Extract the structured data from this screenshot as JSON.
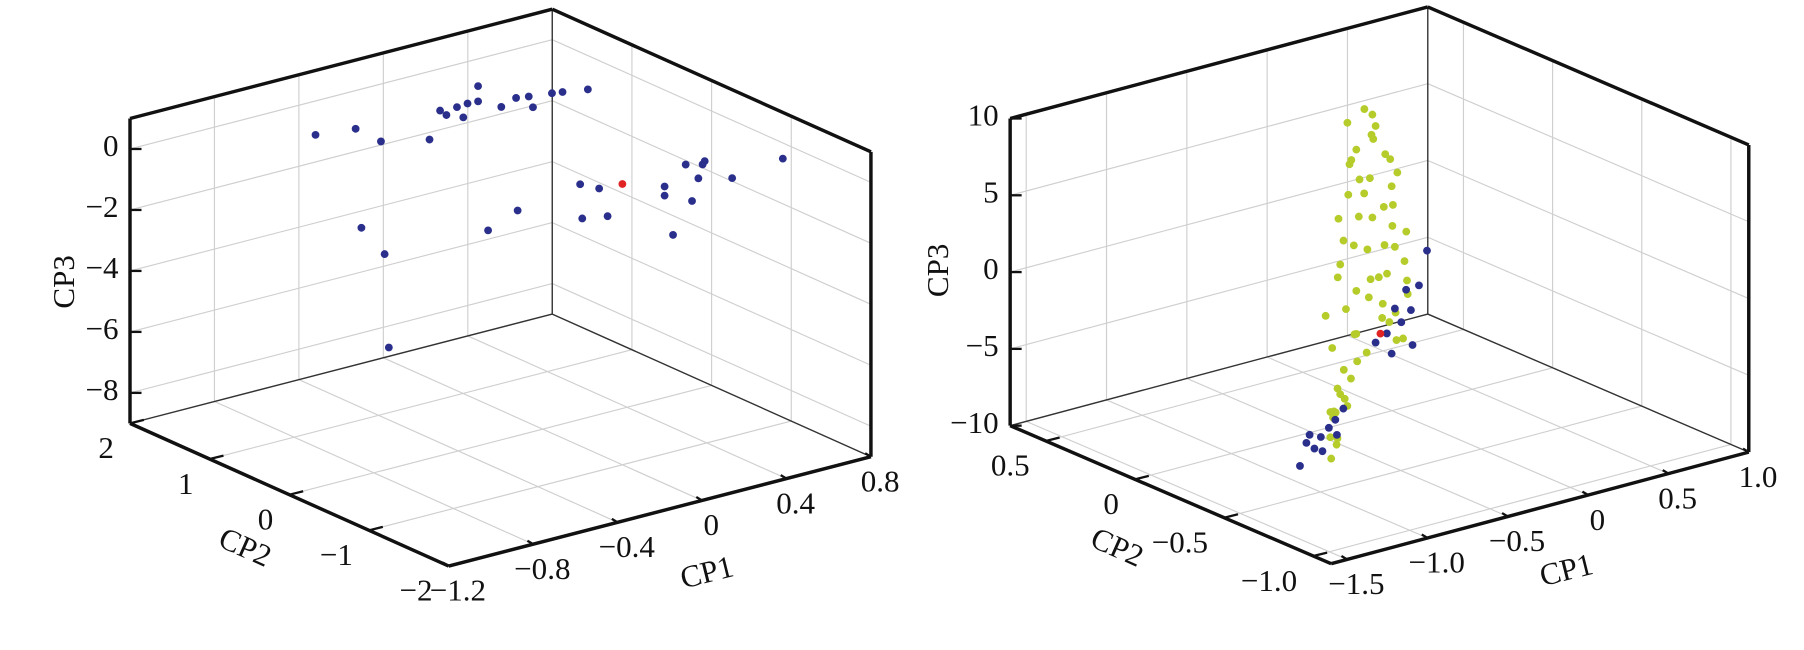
{
  "chart_data": [
    {
      "type": "scatter3d",
      "xlabel": "CP1",
      "ylabel": "CP2",
      "zlabel": "CP3",
      "xlim": [
        -1.2,
        0.8
      ],
      "ylim": [
        -2,
        2
      ],
      "zlim": [
        -9,
        1
      ],
      "xticks": [
        {
          "value": -1.2,
          "label": "−1.2"
        },
        {
          "value": -0.8,
          "label": "−0.8"
        },
        {
          "value": -0.4,
          "label": "−0.4"
        },
        0,
        0.4,
        0.8
      ],
      "yticks": [
        {
          "value": -2,
          "label": "−2"
        },
        {
          "value": -1,
          "label": "−1"
        },
        0,
        1,
        2
      ],
      "zticks": [
        {
          "value": -8,
          "label": "−8"
        },
        {
          "value": -6,
          "label": "−6"
        },
        {
          "value": -4,
          "label": "−4"
        },
        {
          "value": -2,
          "label": "−2"
        },
        0
      ],
      "grid": true,
      "series": [
        {
          "color": "#2b2f8c",
          "x": [
            -0.51,
            -0.32,
            -0.2,
            0.03,
            0.08,
            0.11,
            0.16,
            0.19,
            0.21,
            0.26,
            0.26,
            0.37,
            0.44,
            0.5,
            0.52,
            0.61,
            0.66,
            0.78,
            -0.2,
            -0.11,
            0.2,
            0.2,
            0.3,
            0.33,
            0.36,
            0.38,
            0.39,
            0.52,
            0.76,
            -0.19,
            -0.07,
            0.24,
            -0.67,
            -0.56,
            -0.54,
            -0.07,
            0.07
          ],
          "y": [
            1.5,
            1.5,
            1.5,
            1.5,
            1.5,
            1.5,
            1.5,
            1.5,
            1.5,
            1.5,
            1.5,
            1.5,
            1.5,
            1.5,
            1.5,
            1.5,
            1.5,
            1.5,
            -1,
            -1,
            -1,
            -1,
            -1,
            -1,
            -1,
            -1,
            -1,
            -1,
            -1,
            -1,
            -1,
            -1,
            0.5,
            0.5,
            0.5,
            0.5,
            0.5
          ],
          "z": [
            -0.19,
            -0.33,
            -0.96,
            -1.31,
            -0.45,
            -0.65,
            -0.48,
            -0.87,
            -0.45,
            0.03,
            -0.47,
            -0.85,
            -0.68,
            -0.74,
            -1.13,
            -0.83,
            -0.88,
            -1.01,
            0.56,
            0.26,
            -0.23,
            -0.53,
            0.31,
            -0.94,
            -0.25,
            0.17,
            0.26,
            -0.53,
            -0.32,
            -0.58,
            -0.72,
            -1.89,
            -1.78,
            -2.84,
            -5.94,
            -2.94,
            -2.54
          ]
        },
        {
          "color": "#e02424",
          "x": [
            0.0
          ],
          "y": [
            -1
          ],
          "z": [
            0.21
          ]
        }
      ]
    },
    {
      "type": "scatter3d",
      "xlabel": "CP1",
      "ylabel": "CP2",
      "zlabel": "CP3",
      "xlim": [
        -1.6,
        1.0
      ],
      "ylim": [
        -1.1,
        0.7
      ],
      "zlim": [
        -10,
        10
      ],
      "xticks": [
        {
          "value": -1.5,
          "label": "−1.5"
        },
        {
          "value": -1.0,
          "label": "−1.0"
        },
        {
          "value": -0.5,
          "label": "−0.5"
        },
        0,
        0.5,
        {
          "value": 1.0,
          "label": "1.0"
        }
      ],
      "yticks": [
        {
          "value": -1.0,
          "label": "−1.0"
        },
        {
          "value": -0.5,
          "label": "−0.5"
        },
        0,
        0.5
      ],
      "zticks": [
        {
          "value": -10,
          "label": "−10"
        },
        {
          "value": -5,
          "label": "−5"
        },
        0,
        5,
        10
      ],
      "grid": true,
      "series": [
        {
          "color": "#b5cc2a",
          "x": [
            0.05,
            0.1,
            0,
            0.12,
            0.05,
            0.15,
            0,
            0.1,
            0.18,
            -0.02,
            0.08,
            0.2,
            0.02,
            0.14,
            -0.05,
            0.22,
            0.06,
            0.16,
            -0.04,
            0.25,
            0.1,
            0,
            0.2,
            -0.08,
            0.28,
            0.12,
            0.04,
            0.24,
            -0.1,
            0.18,
            0.08,
            0.3,
            -0.06,
            0.14,
            0.26,
            0,
            0.2,
            -0.12,
            0.1,
            0.32,
            0.05,
            0.22,
            -0.08,
            0.15,
            0.3,
            0,
            0.18,
            -0.15,
            0.1,
            0.25,
            -0.05,
            0.12,
            -0.3,
            -0.45,
            -0.6,
            -0.5,
            -0.75,
            -0.85,
            -0.7,
            -0.95,
            -1.05,
            -0.9,
            -1.1,
            -0.2,
            -0.35,
            -0.55
          ],
          "y": [
            0.2,
            0.2,
            0.25,
            0.2,
            0.15,
            0.25,
            0.2,
            0.1,
            0.2,
            0.22,
            0.3,
            0.15,
            0.2,
            0.25,
            0.2,
            0.2,
            0.1,
            0.3,
            0.15,
            0.22,
            0.2,
            0.3,
            0.1,
            0.2,
            0.25,
            0.15,
            0.25,
            0.2,
            0.2,
            0.3,
            0.1,
            0.2,
            0.25,
            0.2,
            0.15,
            0.2,
            0.3,
            0.15,
            0.22,
            0.2,
            0.1,
            0.25,
            0.3,
            0.15,
            0.25,
            0.2,
            0.1,
            0.2,
            0.3,
            0.2,
            0.15,
            0.25,
            0,
            -0.1,
            -0.25,
            -0.2,
            -0.35,
            -0.45,
            -0.3,
            -0.55,
            -0.6,
            -0.5,
            -0.65,
            0.05,
            -0.05,
            -0.15
          ],
          "z": [
            8.5,
            8,
            7.5,
            7.2,
            6.8,
            6.3,
            6,
            5.6,
            5.2,
            5,
            4.6,
            4.2,
            4,
            3.5,
            3.2,
            3,
            2.6,
            2.2,
            2,
            1.6,
            1.3,
            1,
            0.6,
            0.3,
            0,
            -0.3,
            -0.6,
            -1,
            -1.2,
            -1.5,
            -1.8,
            -2.1,
            -2.4,
            -2.7,
            -3,
            -3.2,
            -3.5,
            -3.8,
            -4,
            -4.3,
            -4.6,
            -4.9,
            -5.1,
            -5.4,
            -5.7,
            -6,
            -6.3,
            -6.5,
            -6.8,
            -7.1,
            -7.4,
            -7.8,
            -6.5,
            -6.8,
            -6,
            -7.3,
            -6.2,
            -5.5,
            -7,
            -6.4,
            -5.8,
            -7.2,
            -6.8,
            -7.6,
            -8,
            -7.8
          ]
        },
        {
          "color": "#2b2f8c",
          "x": [
            0.44,
            0.39,
            0.31,
            0.24,
            0.28,
            0.19,
            0.12,
            0.35,
            0.22,
            0.34,
            -1.35,
            -1.31,
            -1.26,
            -1.22,
            -1.17,
            -1.13,
            -1.08,
            -1.21,
            -1.29,
            -1.12
          ],
          "y": [
            0.2,
            0.2,
            0.2,
            0.2,
            0.2,
            0.2,
            0.2,
            0.2,
            0.2,
            0.2,
            -0.7,
            -0.7,
            -0.7,
            -0.7,
            -0.7,
            -0.7,
            -0.7,
            -0.7,
            -0.7,
            -0.7
          ],
          "z": [
            -1.81,
            -3.93,
            -3.99,
            -5.02,
            -6.02,
            -6.5,
            -6.9,
            -7.7,
            -7.9,
            -5.4,
            -6.33,
            -4.94,
            -5.45,
            -4.81,
            -4.35,
            -3.94,
            -3.35,
            -5.76,
            -4.47,
            -4.95
          ]
        },
        {
          "color": "#e02424",
          "x": [
            0.15
          ],
          "y": [
            0.2
          ],
          "z": [
            -6.4
          ]
        }
      ]
    }
  ]
}
